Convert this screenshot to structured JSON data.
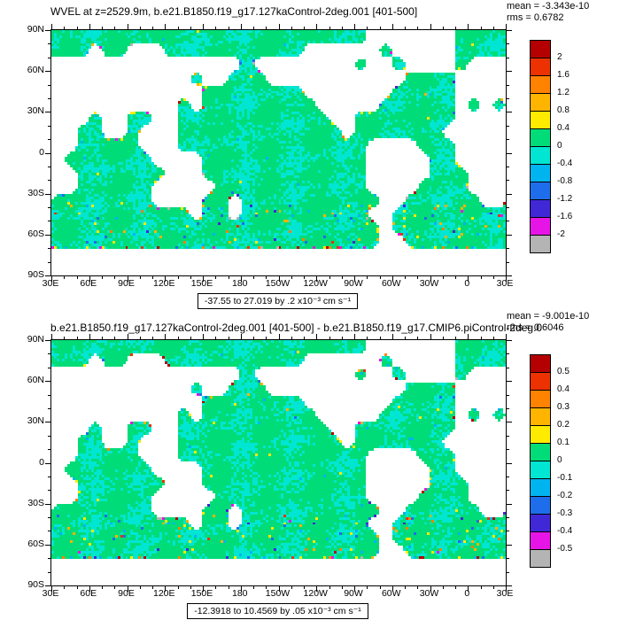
{
  "chart_data": {
    "type": "heatmap",
    "field": "WVEL",
    "field_description": "global lat-lon maps of ocean vertical velocity: control run (top) and control-minus-piControl difference (bottom), land masked white",
    "units": "x10⁻³ cm s⁻¹",
    "land_color": "#ffffff",
    "palette": [
      "#b4b4b4",
      "#e614e6",
      "#4128d7",
      "#1e6eeb",
      "#00b4f0",
      "#00e6d2",
      "#00dc78",
      "#ffeb00",
      "#ffb400",
      "#ff8200",
      "#eb3200",
      "#b40000"
    ],
    "axis": {
      "lat_labels": [
        "90N",
        "60N",
        "30N",
        "0",
        "30S",
        "60S",
        "90S"
      ],
      "lon_labels": [
        "30E",
        "60E",
        "90E",
        "120E",
        "150E",
        "180",
        "150W",
        "120W",
        "90W",
        "60W",
        "30W",
        "0",
        "30E"
      ],
      "lat_range": [
        90,
        -90
      ],
      "lon_start": "30E"
    },
    "panels": [
      {
        "title": "WVEL at z=2529.9m, b.e21.B1850.f19_g17.127kaControl-2deg.001 [401-500]",
        "mean_label": "mean = -3.343e-10",
        "rms_label": "rms = 0.6782",
        "mean": -3.343e-10,
        "rms": 0.6782,
        "caption": "-37.55 to 27.019 by .2 x10⁻³ cm s⁻¹",
        "range": [
          -37.55,
          27.019
        ],
        "contour_interval": 0.2,
        "levels": [
          -2,
          -1.6,
          -1.2,
          -0.8,
          -0.4,
          0,
          0.4,
          0.8,
          1.2,
          1.6,
          2
        ],
        "colorbar_labels": [
          "2",
          "1.6",
          "1.2",
          "0.8",
          "0.4",
          "0",
          "-0.4",
          "-0.8",
          "-1.2",
          "-1.6",
          "-2"
        ]
      },
      {
        "title": "b.e21.B1850.f19_g17.127kaControl-2deg.001 [401-500] - b.e21.B1850.f19_g17.CMIP6.piControl-2deg.0",
        "mean_label": "mean = -9.001e-10",
        "rms_label": "rms = 0.6046",
        "mean": -9.001e-10,
        "rms": 0.6046,
        "caption": "-12.3918 to 10.4569 by .05 x10⁻³ cm s⁻¹",
        "range": [
          -12.3918,
          10.4569
        ],
        "contour_interval": 0.05,
        "levels": [
          -0.5,
          -0.4,
          -0.3,
          -0.2,
          -0.1,
          0,
          0.1,
          0.2,
          0.3,
          0.4,
          0.5
        ],
        "colorbar_labels": [
          "0.5",
          "0.4",
          "0.3",
          "0.2",
          "0.1",
          "0",
          "-0.1",
          "-0.2",
          "-0.3",
          "-0.4",
          "-0.5"
        ]
      }
    ],
    "land_mask_10deg": [
      ".........................#######....",
      "...#..###...........######.#####....",
      "###############.########.##.####.###",
      "###########.##...###########....####",
      "############........#######.....####",
      "##########.#.........#####......#.#.",
      "###.##..##............##........####",
      "##..##.###.............#.......#####",
      "##.....###...............####...####",
      "#.......####.............#####..####",
      "##.......###.............#####...###",
      "##......#####............####....###",
      "........####..#...........##......##",
      "...........#..#..........##.........",
      "..........................#.........",
      "..........................##........",
      "####################################",
      "####################################"
    ]
  }
}
